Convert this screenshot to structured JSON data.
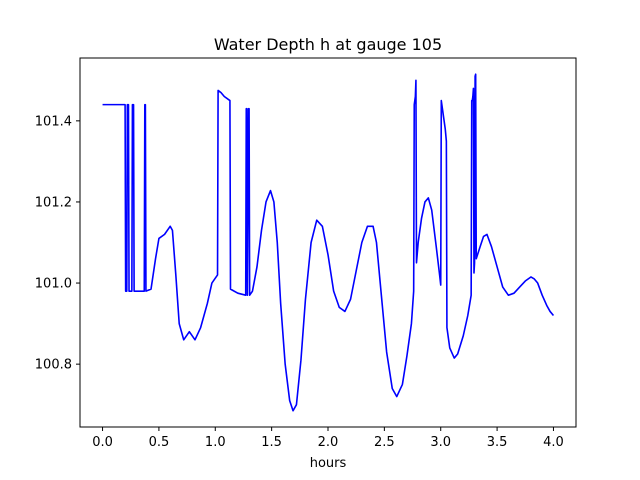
{
  "chart_data": {
    "type": "line",
    "title": "Water Depth h at gauge 105",
    "xlabel": "hours",
    "ylabel": "",
    "xlim": [
      -0.2,
      4.2
    ],
    "ylim": [
      100.645,
      101.555
    ],
    "xticks": [
      0.0,
      0.5,
      1.0,
      1.5,
      2.0,
      2.5,
      3.0,
      3.5,
      4.0
    ],
    "xtick_labels": [
      "0.0",
      "0.5",
      "1.0",
      "1.5",
      "2.0",
      "2.5",
      "3.0",
      "3.5",
      "4.0"
    ],
    "yticks": [
      100.8,
      101.0,
      101.2,
      101.4
    ],
    "ytick_labels": [
      "100.8",
      "101.0",
      "101.2",
      "101.4"
    ],
    "grid": false,
    "series": [
      {
        "color": "#0000ff",
        "points": [
          [
            0.0,
            101.44
          ],
          [
            0.2,
            101.44
          ],
          [
            0.205,
            100.98
          ],
          [
            0.215,
            100.98
          ],
          [
            0.22,
            101.44
          ],
          [
            0.23,
            101.44
          ],
          [
            0.235,
            100.98
          ],
          [
            0.26,
            100.98
          ],
          [
            0.265,
            101.44
          ],
          [
            0.275,
            101.44
          ],
          [
            0.28,
            100.98
          ],
          [
            0.37,
            100.98
          ],
          [
            0.375,
            101.44
          ],
          [
            0.38,
            101.44
          ],
          [
            0.385,
            100.98
          ],
          [
            0.43,
            100.985
          ],
          [
            0.47,
            101.06
          ],
          [
            0.5,
            101.11
          ],
          [
            0.55,
            101.12
          ],
          [
            0.6,
            101.14
          ],
          [
            0.62,
            101.13
          ],
          [
            0.65,
            101.02
          ],
          [
            0.68,
            100.9
          ],
          [
            0.72,
            100.86
          ],
          [
            0.77,
            100.88
          ],
          [
            0.82,
            100.86
          ],
          [
            0.87,
            100.89
          ],
          [
            0.93,
            100.95
          ],
          [
            0.97,
            101.0
          ],
          [
            1.02,
            101.02
          ],
          [
            1.025,
            101.475
          ],
          [
            1.05,
            101.47
          ],
          [
            1.08,
            101.46
          ],
          [
            1.13,
            101.45
          ],
          [
            1.135,
            100.985
          ],
          [
            1.2,
            100.975
          ],
          [
            1.27,
            100.97
          ],
          [
            1.275,
            101.43
          ],
          [
            1.28,
            101.43
          ],
          [
            1.285,
            100.97
          ],
          [
            1.295,
            101.43
          ],
          [
            1.3,
            101.43
          ],
          [
            1.305,
            100.97
          ],
          [
            1.33,
            100.98
          ],
          [
            1.37,
            101.04
          ],
          [
            1.41,
            101.13
          ],
          [
            1.45,
            101.2
          ],
          [
            1.49,
            101.228
          ],
          [
            1.52,
            101.2
          ],
          [
            1.55,
            101.1
          ],
          [
            1.58,
            100.95
          ],
          [
            1.62,
            100.8
          ],
          [
            1.66,
            100.71
          ],
          [
            1.69,
            100.685
          ],
          [
            1.72,
            100.7
          ],
          [
            1.76,
            100.81
          ],
          [
            1.8,
            100.96
          ],
          [
            1.85,
            101.1
          ],
          [
            1.9,
            101.155
          ],
          [
            1.95,
            101.14
          ],
          [
            2.0,
            101.07
          ],
          [
            2.05,
            100.98
          ],
          [
            2.1,
            100.94
          ],
          [
            2.15,
            100.93
          ],
          [
            2.2,
            100.96
          ],
          [
            2.25,
            101.03
          ],
          [
            2.3,
            101.1
          ],
          [
            2.35,
            101.14
          ],
          [
            2.4,
            101.14
          ],
          [
            2.43,
            101.1
          ],
          [
            2.47,
            100.98
          ],
          [
            2.52,
            100.83
          ],
          [
            2.57,
            100.74
          ],
          [
            2.61,
            100.72
          ],
          [
            2.66,
            100.75
          ],
          [
            2.7,
            100.82
          ],
          [
            2.74,
            100.9
          ],
          [
            2.76,
            100.98
          ],
          [
            2.765,
            101.44
          ],
          [
            2.77,
            101.45
          ],
          [
            2.775,
            101.46
          ],
          [
            2.78,
            101.5
          ],
          [
            2.785,
            101.05
          ],
          [
            2.8,
            101.1
          ],
          [
            2.83,
            101.16
          ],
          [
            2.86,
            101.2
          ],
          [
            2.89,
            101.21
          ],
          [
            2.92,
            101.18
          ],
          [
            2.96,
            101.09
          ],
          [
            2.99,
            101.02
          ],
          [
            3.0,
            100.995
          ],
          [
            3.005,
            101.45
          ],
          [
            3.02,
            101.42
          ],
          [
            3.04,
            101.38
          ],
          [
            3.05,
            101.35
          ],
          [
            3.055,
            100.89
          ],
          [
            3.08,
            100.84
          ],
          [
            3.12,
            100.815
          ],
          [
            3.15,
            100.825
          ],
          [
            3.2,
            100.87
          ],
          [
            3.24,
            100.92
          ],
          [
            3.27,
            100.97
          ],
          [
            3.275,
            101.45
          ],
          [
            3.28,
            101.45
          ],
          [
            3.285,
            101.46
          ],
          [
            3.29,
            101.48
          ],
          [
            3.295,
            101.025
          ],
          [
            3.3,
            101.05
          ],
          [
            3.305,
            101.51
          ],
          [
            3.31,
            101.515
          ],
          [
            3.315,
            101.06
          ],
          [
            3.35,
            101.09
          ],
          [
            3.38,
            101.115
          ],
          [
            3.41,
            101.12
          ],
          [
            3.45,
            101.09
          ],
          [
            3.5,
            101.04
          ],
          [
            3.55,
            100.99
          ],
          [
            3.6,
            100.97
          ],
          [
            3.65,
            100.975
          ],
          [
            3.7,
            100.99
          ],
          [
            3.75,
            101.005
          ],
          [
            3.8,
            101.015
          ],
          [
            3.83,
            101.01
          ],
          [
            3.86,
            101.0
          ],
          [
            3.9,
            100.97
          ],
          [
            3.94,
            100.945
          ],
          [
            3.97,
            100.93
          ],
          [
            4.0,
            100.92
          ]
        ]
      }
    ]
  }
}
